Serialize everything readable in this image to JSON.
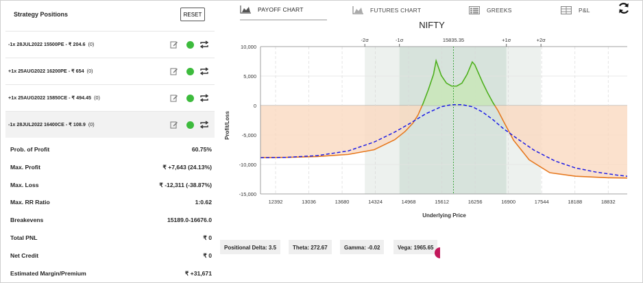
{
  "strategy": {
    "title": "Strategy Positions",
    "reset_label": "RESET",
    "positions": [
      {
        "text": "-1x  28JUL2022  15500PE  - ₹ 204.6",
        "count": "(0)"
      },
      {
        "text": "+1x  25AUG2022  16200PE  - ₹ 654",
        "count": "(0)"
      },
      {
        "text": "+1x  25AUG2022  15850CE  - ₹ 494.45",
        "count": "(0)"
      },
      {
        "text": "-1x  28JUL2022  16400CE  - ₹ 108.9",
        "count": "(0)"
      }
    ],
    "metrics": [
      {
        "label": "Prob. of Profit",
        "value": "60.75%"
      },
      {
        "label": "Max. Profit",
        "value": "₹ +7,643 (24.13%)"
      },
      {
        "label": "Max. Loss",
        "value": "₹ -12,311 (-38.87%)"
      },
      {
        "label": "Max. RR Ratio",
        "value": "1:0.62"
      },
      {
        "label": "Breakevens",
        "value": "15189.0-16676.0"
      },
      {
        "label": "Total PNL",
        "value": "₹ 0"
      },
      {
        "label": "Net Credit",
        "value": "₹ 0"
      },
      {
        "label": "Estimated Margin/Premium",
        "value": "₹ +31,671"
      }
    ]
  },
  "tabs": [
    {
      "label": "PAYOFF CHART",
      "icon": "area-chart-icon",
      "active": true
    },
    {
      "label": "FUTURES CHART",
      "icon": "area-chart-icon",
      "active": false
    },
    {
      "label": "GREEKS",
      "icon": "table-list-icon",
      "active": false
    },
    {
      "label": "P&L",
      "icon": "grid-table-icon",
      "active": false
    }
  ],
  "colors": {
    "profit_fill": "#c9e6b9",
    "loss_fill": "#fad9c0",
    "payoff_line_profit": "#4caf1c",
    "payoff_line_loss": "#e6781e",
    "target_line": "#1a1ae6",
    "sd_band_1": "#d7e3dc",
    "sd_band_2": "#edf1ee",
    "spot_line": "#2e9e2e"
  },
  "chart_data": {
    "type": "line",
    "title": "NIFTY",
    "xlabel": "Underlying Price",
    "ylabel": "Profit/Loss",
    "xlim": [
      12100,
      19200
    ],
    "ylim": [
      -15000,
      10000
    ],
    "y_ticks": [
      "10,000",
      "5,000",
      "0",
      "-5,000",
      "-10,000",
      "-15,000"
    ],
    "y_tick_values": [
      10000,
      5000,
      0,
      -5000,
      -10000,
      -15000
    ],
    "x_ticks": [
      "12392",
      "13036",
      "13680",
      "14324",
      "14968",
      "15612",
      "16256",
      "16900",
      "17544",
      "18188",
      "18832"
    ],
    "x_tick_values": [
      12392,
      13036,
      13680,
      14324,
      14968,
      15612,
      16256,
      16900,
      17544,
      18188,
      18832
    ],
    "spot": 15835.35,
    "spot_label": "15835.35",
    "sigma_labels": [
      "-2σ",
      "-1σ",
      "+1σ",
      "+2σ"
    ],
    "sigma_values": [
      14120,
      14790,
      16860,
      17530
    ],
    "series": [
      {
        "name": "",
        "style": "solid",
        "x": [
          12100,
          12600,
          13200,
          13800,
          14300,
          14700,
          14900,
          15050,
          15150,
          15250,
          15350,
          15450,
          15500,
          15600,
          15700,
          15800,
          15900,
          16000,
          16100,
          16200,
          16250,
          16300,
          16400,
          16500,
          16600,
          16700,
          16800,
          17000,
          17300,
          17700,
          18200,
          18800,
          19200
        ],
        "y": [
          -8850,
          -8800,
          -8650,
          -8300,
          -7500,
          -5800,
          -4400,
          -3000,
          -1600,
          400,
          2700,
          5300,
          7600,
          5100,
          3800,
          3300,
          3300,
          3800,
          5300,
          7400,
          6900,
          5900,
          3900,
          2100,
          500,
          -900,
          -2600,
          -5900,
          -9200,
          -11400,
          -12000,
          -12250,
          -12300
        ]
      },
      {
        "name": "",
        "style": "dashed",
        "x": [
          12100,
          12600,
          13200,
          13800,
          14300,
          14700,
          15000,
          15300,
          15600,
          15800,
          16000,
          16200,
          16400,
          16600,
          16800,
          17100,
          17400,
          17800,
          18200,
          18600,
          19000,
          19200
        ],
        "y": [
          -8850,
          -8800,
          -8500,
          -7700,
          -6200,
          -4500,
          -3000,
          -1400,
          -200,
          150,
          150,
          -200,
          -1100,
          -2400,
          -3900,
          -5800,
          -7600,
          -9400,
          -10600,
          -11300,
          -11800,
          -12000
        ]
      }
    ]
  },
  "greeks": [
    {
      "label": "Positional Delta: 3.5"
    },
    {
      "label": "Theta: 272.67"
    },
    {
      "label": "Gamma: -0.02"
    },
    {
      "label": "Vega: 1965.65"
    }
  ]
}
